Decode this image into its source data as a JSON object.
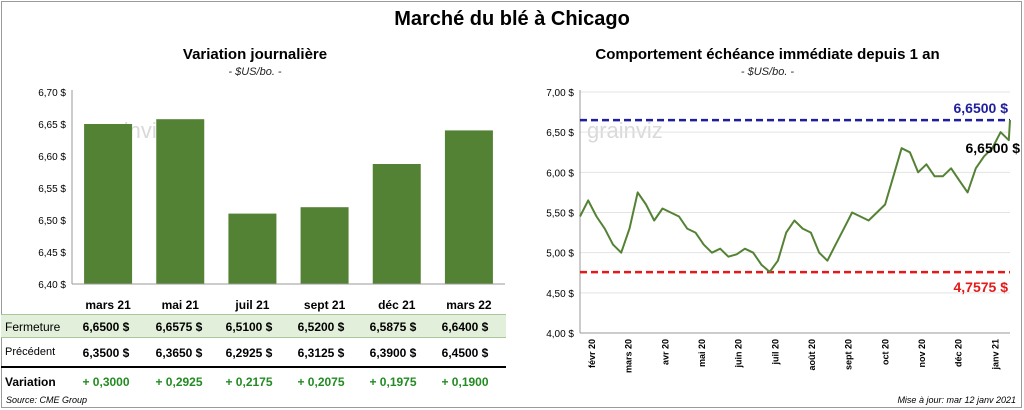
{
  "title": "Marché du blé à Chicago",
  "colors": {
    "bar": "#548235",
    "line": "#548235",
    "high": "#1f1f9e",
    "low": "#e31a1a"
  },
  "left": {
    "title": "Variation  journalière",
    "subtitle": "- $US/bo. -",
    "watermark": "grainviz"
  },
  "right": {
    "title": "Comportement  échéance immédiate depuis 1 an",
    "subtitle": "- $US/bo. -",
    "watermark": "grainviz"
  },
  "chart_data": [
    {
      "type": "bar",
      "categories": [
        "mars 21",
        "mai 21",
        "juil 21",
        "sept 21",
        "déc 21",
        "mars 22"
      ],
      "values": [
        6.65,
        6.6575,
        6.51,
        6.52,
        6.5875,
        6.64
      ],
      "ylim": [
        6.4,
        6.7
      ],
      "yticks": [
        "6,40 $",
        "6,45 $",
        "6,50 $",
        "6,55 $",
        "6,60 $",
        "6,65 $",
        "6,70 $"
      ],
      "grid": false
    },
    {
      "type": "line",
      "ylim": [
        4.0,
        7.0
      ],
      "yticks": [
        "4,00 $",
        "4,50 $",
        "5,00 $",
        "5,50 $",
        "6,00 $",
        "6,50 $",
        "7,00 $"
      ],
      "xticks": [
        "févr 20",
        "mars 20",
        "avr 20",
        "mai 20",
        "juin 20",
        "juil 20",
        "août 20",
        "sept 20",
        "oct 20",
        "nov 20",
        "déc 20",
        "janv 21"
      ],
      "high": {
        "value": 6.65,
        "label": "6,6500 $"
      },
      "low": {
        "value": 4.7575,
        "label": "4,7575 $"
      },
      "last": {
        "value": 6.65,
        "label": "6,6500 $"
      },
      "series": [
        {
          "x": [
            "2020-01-13",
            "2020-01-20",
            "2020-01-27",
            "2020-02-03",
            "2020-02-10",
            "2020-02-17",
            "2020-02-24",
            "2020-03-02",
            "2020-03-09",
            "2020-03-16",
            "2020-03-23",
            "2020-03-30",
            "2020-04-06",
            "2020-04-13",
            "2020-04-20",
            "2020-04-27",
            "2020-05-04",
            "2020-05-11",
            "2020-05-18",
            "2020-05-25",
            "2020-06-01",
            "2020-06-08",
            "2020-06-15",
            "2020-06-22",
            "2020-06-29",
            "2020-07-06",
            "2020-07-13",
            "2020-07-20",
            "2020-07-27",
            "2020-08-03",
            "2020-08-10",
            "2020-08-17",
            "2020-08-24",
            "2020-08-31",
            "2020-09-07",
            "2020-09-14",
            "2020-09-21",
            "2020-09-28",
            "2020-10-05",
            "2020-10-12",
            "2020-10-19",
            "2020-10-26",
            "2020-11-02",
            "2020-11-09",
            "2020-11-16",
            "2020-11-23",
            "2020-11-30",
            "2020-12-07",
            "2020-12-14",
            "2020-12-21",
            "2020-12-28",
            "2021-01-04",
            "2021-01-11",
            "2021-01-12"
          ],
          "values": [
            5.45,
            5.65,
            5.45,
            5.3,
            5.1,
            5.0,
            5.3,
            5.75,
            5.6,
            5.4,
            5.55,
            5.5,
            5.45,
            5.3,
            5.25,
            5.1,
            5.0,
            5.05,
            4.95,
            4.98,
            5.05,
            5.0,
            4.85,
            4.76,
            4.9,
            5.25,
            5.4,
            5.3,
            5.25,
            5.0,
            4.9,
            5.1,
            5.3,
            5.5,
            5.45,
            5.4,
            5.5,
            5.6,
            5.95,
            6.3,
            6.25,
            6.0,
            6.1,
            5.95,
            5.95,
            6.05,
            5.9,
            5.75,
            6.05,
            6.2,
            6.3,
            6.5,
            6.4,
            6.65
          ]
        }
      ]
    }
  ],
  "table": {
    "rows": [
      {
        "label": "Fermeture",
        "values": [
          "6,6500  $",
          "6,6575  $",
          "6,5100  $",
          "6,5200  $",
          "6,5875  $",
          "6,6400  $"
        ]
      },
      {
        "label": "Précédent",
        "values": [
          "6,3500  $",
          "6,3650  $",
          "6,2925  $",
          "6,3125  $",
          "6,3900  $",
          "6,4500  $"
        ]
      },
      {
        "label": "Variation",
        "values": [
          "+ 0,3000",
          "+ 0,2925",
          "+ 0,2175",
          "+ 0,2075",
          "+ 0,1975",
          "+ 0,1900"
        ]
      }
    ]
  },
  "source": "Source: CME Group",
  "update": "Mise à jour: mar 12 janv 2021"
}
